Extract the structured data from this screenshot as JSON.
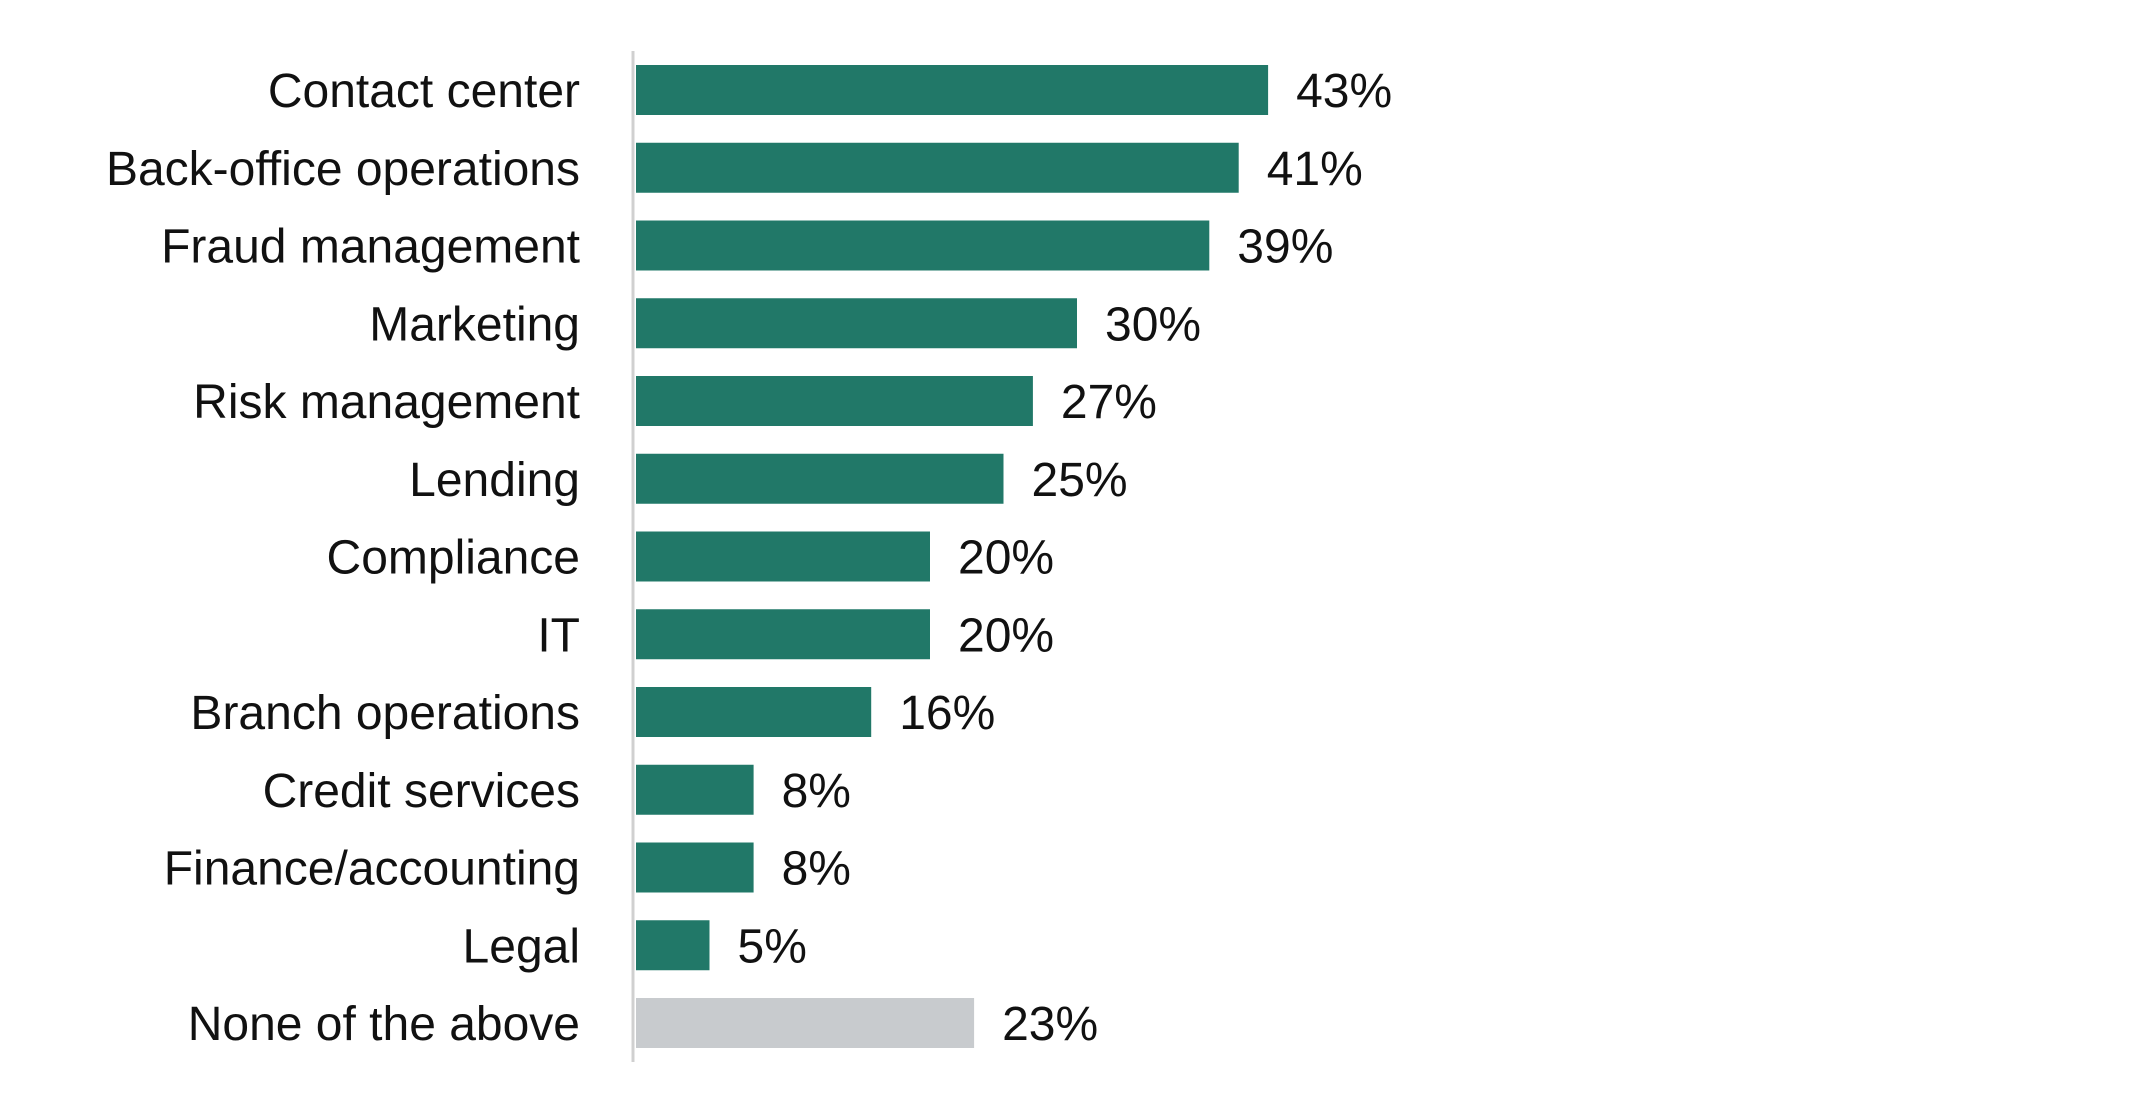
{
  "chart_data": {
    "type": "bar",
    "orientation": "horizontal",
    "categories": [
      "Contact center",
      "Back-office operations",
      "Fraud management",
      "Marketing",
      "Risk management",
      "Lending",
      "Compliance",
      "IT",
      "Branch operations",
      "Credit services",
      "Finance/accounting",
      "Legal",
      "None of the above"
    ],
    "values": [
      43,
      41,
      39,
      30,
      27,
      25,
      20,
      20,
      16,
      8,
      8,
      5,
      23
    ],
    "data_labels": [
      "43%",
      "41%",
      "39%",
      "30%",
      "27%",
      "25%",
      "20%",
      "20%",
      "16%",
      "8%",
      "8%",
      "5%",
      "23%"
    ],
    "unit": "%",
    "xlim": [
      0,
      100
    ],
    "grid": false,
    "colors": {
      "default": "#217868",
      "none_of_the_above": "#c8cbce",
      "axis": "#d0d0d0"
    }
  }
}
